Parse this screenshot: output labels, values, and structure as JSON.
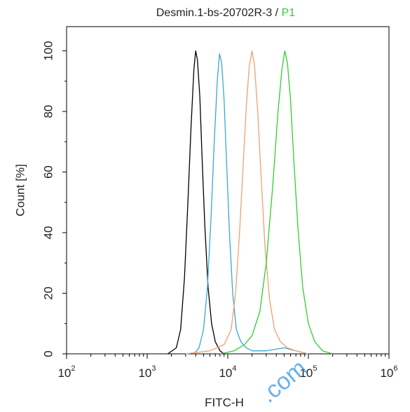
{
  "chart_data": {
    "type": "line",
    "title": "Desmin.1-bs-20702R-3 / ",
    "title_highlight": "P1",
    "title_highlight_color": "#33cc33",
    "xlabel": "FITC-H",
    "ylabel": "Count [%]",
    "x_scale": "log",
    "xlim": [
      100,
      1000000
    ],
    "ylim": [
      0,
      108
    ],
    "x_ticks": [
      100,
      1000,
      10000,
      100000,
      1000000
    ],
    "x_tick_labels": [
      {
        "base": "10",
        "exp": "2"
      },
      {
        "base": "10",
        "exp": "3"
      },
      {
        "base": "10",
        "exp": "4"
      },
      {
        "base": "10",
        "exp": "5"
      },
      {
        "base": "10",
        "exp": "6"
      }
    ],
    "y_ticks": [
      0,
      20,
      40,
      60,
      80,
      100
    ],
    "y_tick_labels": [
      "0",
      "20",
      "40",
      "60",
      "80",
      "100"
    ],
    "grid": false,
    "legend": "none",
    "series": [
      {
        "color": "#000000",
        "x": [
          1800,
          2300,
          2600,
          2900,
          3200,
          3500,
          3800,
          4000,
          4200,
          4500,
          4800,
          5200,
          5700,
          6300,
          7000,
          8000,
          9000
        ],
        "y": [
          0,
          2,
          8,
          25,
          50,
          75,
          94,
          100,
          97,
          85,
          65,
          42,
          22,
          10,
          4,
          1,
          0
        ]
      },
      {
        "color": "#3aa6d8",
        "x": [
          3800,
          4400,
          5000,
          5600,
          6200,
          6800,
          7400,
          7900,
          8400,
          9000,
          9700,
          10500,
          11500,
          12800,
          14500,
          17000,
          20000,
          30000,
          50000,
          70000,
          100000
        ],
        "y": [
          0,
          2,
          8,
          22,
          45,
          70,
          90,
          99,
          96,
          84,
          62,
          40,
          20,
          8,
          4,
          2,
          1,
          1,
          2,
          1,
          0
        ]
      },
      {
        "color": "#f0a070",
        "x": [
          3000,
          6000,
          9000,
          11000,
          12500,
          14000,
          15500,
          17000,
          18500,
          20000,
          21500,
          23500,
          26000,
          29000,
          33000,
          38000,
          45000,
          55000,
          70000,
          100000
        ],
        "y": [
          0,
          1,
          3,
          8,
          20,
          40,
          62,
          82,
          95,
          100,
          95,
          80,
          58,
          35,
          18,
          8,
          4,
          2,
          1,
          0
        ]
      },
      {
        "color": "#33cc33",
        "x": [
          8000,
          12000,
          16000,
          20000,
          25000,
          30000,
          36000,
          42000,
          47000,
          51000,
          55000,
          60000,
          66000,
          74000,
          85000,
          100000,
          120000,
          150000,
          200000
        ],
        "y": [
          0,
          1,
          3,
          6,
          14,
          30,
          55,
          80,
          94,
          100,
          96,
          84,
          64,
          42,
          22,
          10,
          4,
          1,
          0
        ]
      }
    ]
  },
  "watermark": {
    "text": ".com",
    "color": "#2e8fe8"
  }
}
